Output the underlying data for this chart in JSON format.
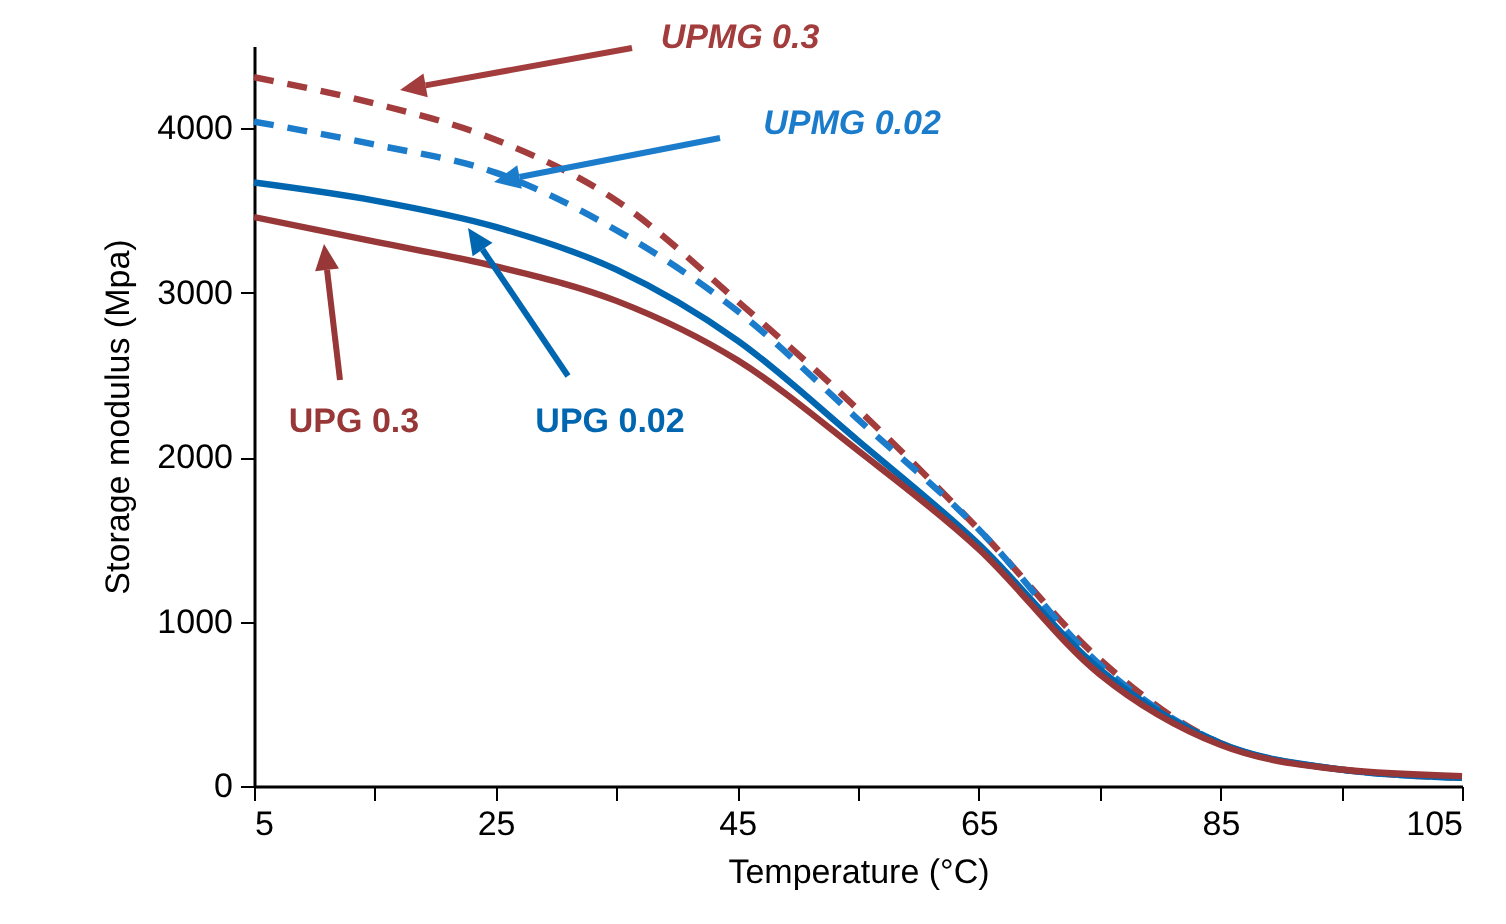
{
  "chart_data": {
    "type": "line",
    "xlabel": "Temperature (°C)",
    "ylabel": "Storage modulus (Mpa)",
    "x": [
      5,
      15,
      25,
      35,
      45,
      55,
      65,
      75,
      85,
      95,
      105
    ],
    "xlim": [
      5,
      105
    ],
    "xticks": [
      5,
      {
        "value": 15,
        "label": null
      },
      25,
      {
        "value": 35,
        "label": null
      },
      45,
      {
        "value": 55,
        "label": null
      },
      65,
      {
        "value": 75,
        "label": null
      },
      85,
      {
        "value": 95,
        "label": null
      },
      105
    ],
    "ylim": [
      0,
      4500
    ],
    "yticks": [
      0,
      1000,
      2000,
      3000,
      4000
    ],
    "grid": false,
    "series": [
      {
        "name": "UPMG 0.3",
        "color": "#a33c3c",
        "line_style": "dashed",
        "values": [
          4310,
          4150,
          3930,
          3560,
          2950,
          2290,
          1560,
          770,
          260,
          100,
          50
        ]
      },
      {
        "name": "UPMG 0.02",
        "color": "#1c7ccc",
        "line_style": "dashed",
        "values": [
          4040,
          3900,
          3730,
          3380,
          2890,
          2230,
          1560,
          740,
          260,
          100,
          50
        ]
      },
      {
        "name": "UPG 0.02",
        "color": "#0066b0",
        "line_style": "solid",
        "values": [
          3670,
          3560,
          3400,
          3140,
          2710,
          2100,
          1470,
          710,
          260,
          100,
          50
        ]
      },
      {
        "name": "UPG 0.3",
        "color": "#983737",
        "line_style": "solid",
        "values": [
          3460,
          3310,
          3160,
          2950,
          2590,
          2040,
          1440,
          680,
          250,
          100,
          60
        ]
      }
    ]
  }
}
